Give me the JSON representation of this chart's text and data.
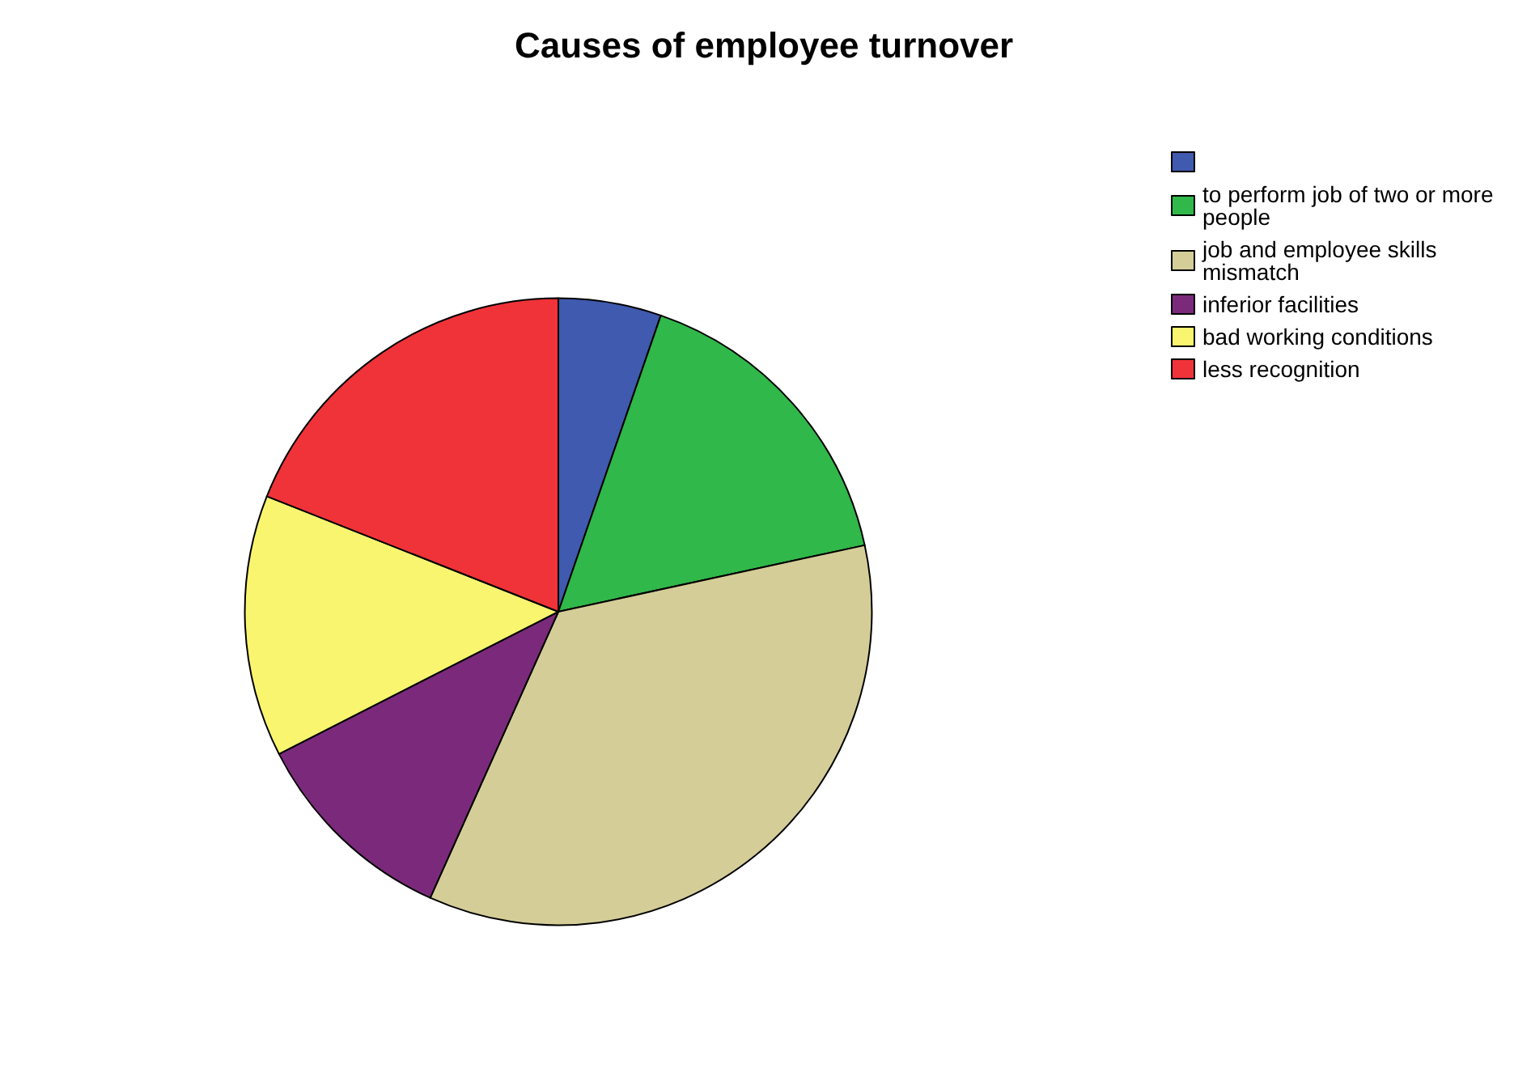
{
  "chart_data": {
    "type": "pie",
    "title": "Causes of employee turnover",
    "categories": [
      null,
      "to perform job of two or more people",
      "job and employee skills mismatch",
      "inferior facilities",
      "bad working conditions",
      "less recognition"
    ],
    "values": [
      5.3,
      16.3,
      35.1,
      10.8,
      13.5,
      19.0
    ],
    "colors": [
      "#3f5aae",
      "#30b84a",
      "#d4cd98",
      "#7b2a7b",
      "#f9f56f",
      "#f03339"
    ],
    "legend": "top right"
  }
}
